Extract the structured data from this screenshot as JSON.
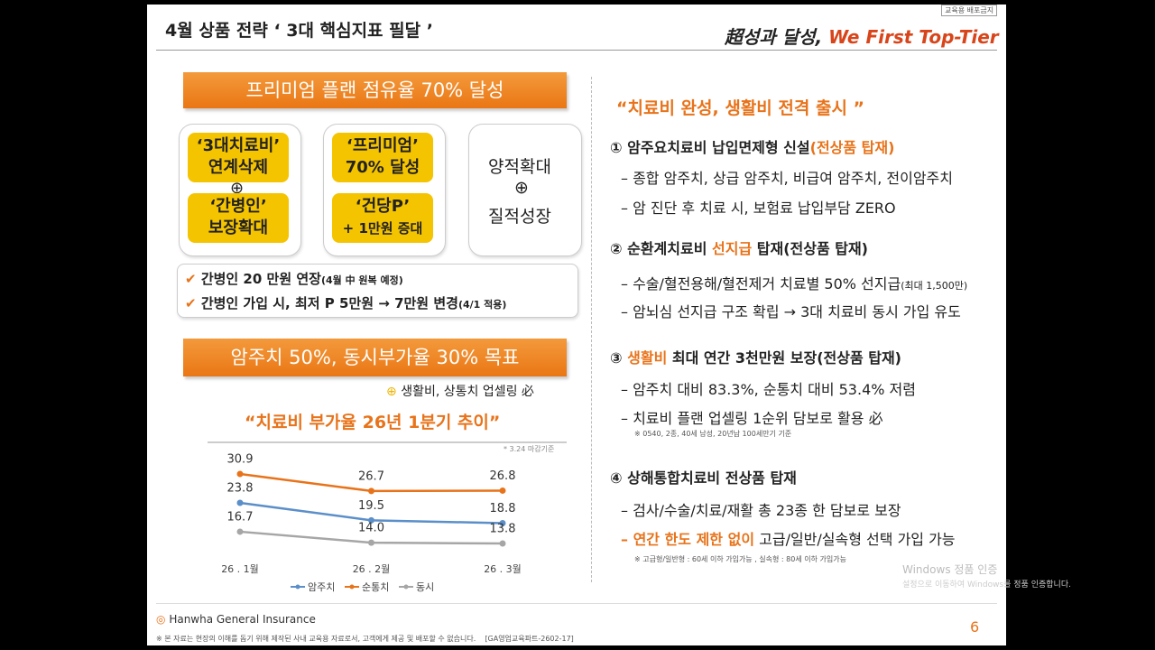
{
  "header": {
    "title": "4월 상품 전략 ‘ 3대 핵심지표 필달 ’",
    "badge": "교육용 배포금지",
    "slogan_kr": "超성과 달성,",
    "slogan_en": "We First Top-Tier"
  },
  "left": {
    "banner1": "프리미엄 플랜 점유율 70% 달성",
    "box1": [
      [
        "‘3대치료비’",
        "연계삭제"
      ],
      [
        "‘간병인’",
        "보장확대"
      ]
    ],
    "box2": [
      [
        "‘프리미엄’",
        "70% 달성"
      ],
      [
        "‘건당P’",
        "+ 1만원 증대"
      ]
    ],
    "box3": [
      "양적확대",
      "질적성장"
    ],
    "checks": [
      {
        "text": "간병인 20 만원 연장",
        "note": "(4월 中 원복 예정)"
      },
      {
        "text": "간병인 가입 시, 최저 P 5만원 → 7만원 변경",
        "note": "(4/1 적용)"
      }
    ],
    "banner2": "암주치 50%, 동시부가율 30% 목표",
    "sub": "생활비, 상통치 업셀링 必",
    "chart_title": "“치료비 부가율 26년 1분기 추이”",
    "basis": "* 3.24 마감기준"
  },
  "chart_data": {
    "type": "line",
    "categories": [
      "26 . 1월",
      "26 . 2월",
      "26 . 3월"
    ],
    "series": [
      {
        "name": "암주치",
        "color": "#5b8fc9",
        "values": [
          23.8,
          19.5,
          18.8
        ],
        "value_labels": [
          "23.8",
          "19.5",
          "18.8"
        ]
      },
      {
        "name": "순통치",
        "color": "#e8731a",
        "values": [
          30.9,
          26.7,
          26.8
        ],
        "value_labels": [
          "30.9",
          "26.7",
          "26.8"
        ]
      },
      {
        "name": "동시",
        "color": "#a6a6a6",
        "values": [
          16.7,
          14.0,
          13.8
        ],
        "value_labels": [
          "16.7",
          "14.0",
          "13.8"
        ]
      }
    ]
  },
  "right": {
    "headline": "“치료비 완성, 생활비 전격 출시 ”",
    "s1": {
      "a": "① 암주요치료비 납입면제형 신설",
      "b": "(전상품 탑재)",
      "items": [
        "– 종합 암주치, 상급 암주치, 비급여 암주치, 전이암주치",
        "– 암 진단 후 치료 시, 보험료 납입부담 ZERO"
      ]
    },
    "s2": {
      "a": "② 순환계치료비 ",
      "b": "선지급",
      "c": " 탑재(전상품 탑재)",
      "i1": "– 수술/혈전용해/혈전제거 치료별 50% 선지급",
      "i1note": "(최대 1,500만)",
      "i2": "– 암뇌심 선지급 구조 확립 → 3대 치료비 동시 가입 유도"
    },
    "s3": {
      "a": "③ ",
      "b": "생활비",
      "c": " 최대 연간 3천만원 보장(전상품 탑재)",
      "items": [
        "– 암주치 대비 83.3%, 순통치 대비 53.4% 저렴",
        "– 치료비 플랜 업셀링 1순위 담보로 활용 必"
      ],
      "note": "※ 0540, 2종, 40세 남성, 20년납 100세만기 기준"
    },
    "s4": {
      "a": "④ 상해통합치료비 전상품 탑재",
      "i1": "– 검사/수술/치료/재활 총 23종 한 담보로 보장",
      "i2a": "– 연간 한도 제한 없이",
      "i2b": " 고급/일반/실속형 선택 가입 가능",
      "note": "※ 고급형/일반형 : 60세 이하 가입가능 , 실속형 : 80세 이하 가입가능"
    }
  },
  "footer": {
    "logo": "Hanwha General Insurance",
    "page": 6,
    "disclaimer": "※ 본 자료는 현장의 이해를 돕기 위해 제작된 사내 교육용 자료로서, 고객에게 제공 및 배포할 수 없습니다.",
    "code": "[GA영업교육파트-2602-17]"
  },
  "activation": {
    "title": "Windows 정품 인증",
    "desc": "설정으로 이동하여 Windows를 정품 인증합니다."
  }
}
